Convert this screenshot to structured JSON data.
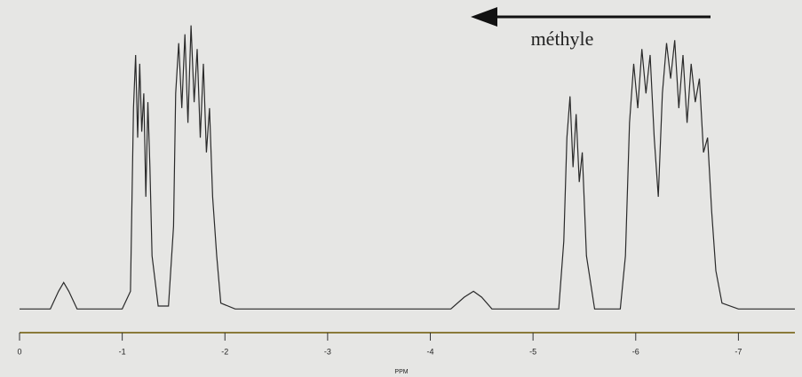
{
  "chart_data": {
    "type": "line",
    "annotation": "méthyle",
    "x_label": "PPM",
    "xlim": [
      0,
      -7.55
    ],
    "xticks": [
      0,
      -1,
      -2,
      -3,
      -4,
      -5,
      -6,
      -7
    ],
    "ylim": [
      0,
      100
    ],
    "x": [
      0,
      -0.3,
      -0.38,
      -0.43,
      -0.48,
      -0.56,
      -1.0,
      -1.08,
      -1.11,
      -1.13,
      -1.15,
      -1.17,
      -1.19,
      -1.21,
      -1.23,
      -1.25,
      -1.27,
      -1.29,
      -1.35,
      -1.45,
      -1.5,
      -1.52,
      -1.55,
      -1.58,
      -1.61,
      -1.64,
      -1.67,
      -1.7,
      -1.73,
      -1.76,
      -1.79,
      -1.82,
      -1.85,
      -1.88,
      -1.92,
      -1.96,
      -2.1,
      -4.2,
      -4.33,
      -4.42,
      -4.5,
      -4.6,
      -5.25,
      -5.3,
      -5.33,
      -5.36,
      -5.39,
      -5.42,
      -5.45,
      -5.48,
      -5.52,
      -5.6,
      -5.85,
      -5.9,
      -5.94,
      -5.98,
      -6.02,
      -6.06,
      -6.1,
      -6.14,
      -6.18,
      -6.22,
      -6.26,
      -6.3,
      -6.34,
      -6.38,
      -6.42,
      -6.46,
      -6.5,
      -6.54,
      -6.58,
      -6.62,
      -6.66,
      -6.7,
      -6.74,
      -6.78,
      -6.84,
      -7.0,
      -7.55
    ],
    "series": [
      {
        "color": "#2a2a2a",
        "values": [
          2,
          2,
          8,
          11,
          8,
          2,
          2,
          8,
          70,
          88,
          60,
          85,
          62,
          75,
          40,
          72,
          50,
          20,
          3,
          3,
          30,
          75,
          92,
          70,
          95,
          65,
          98,
          72,
          90,
          60,
          85,
          55,
          70,
          40,
          20,
          4,
          2,
          2,
          6,
          8,
          6,
          2,
          2,
          25,
          60,
          74,
          50,
          68,
          45,
          55,
          20,
          2,
          2,
          20,
          65,
          85,
          70,
          90,
          75,
          88,
          60,
          40,
          75,
          92,
          80,
          93,
          70,
          88,
          65,
          85,
          72,
          80,
          55,
          60,
          35,
          15,
          4,
          2,
          2
        ]
      }
    ]
  }
}
